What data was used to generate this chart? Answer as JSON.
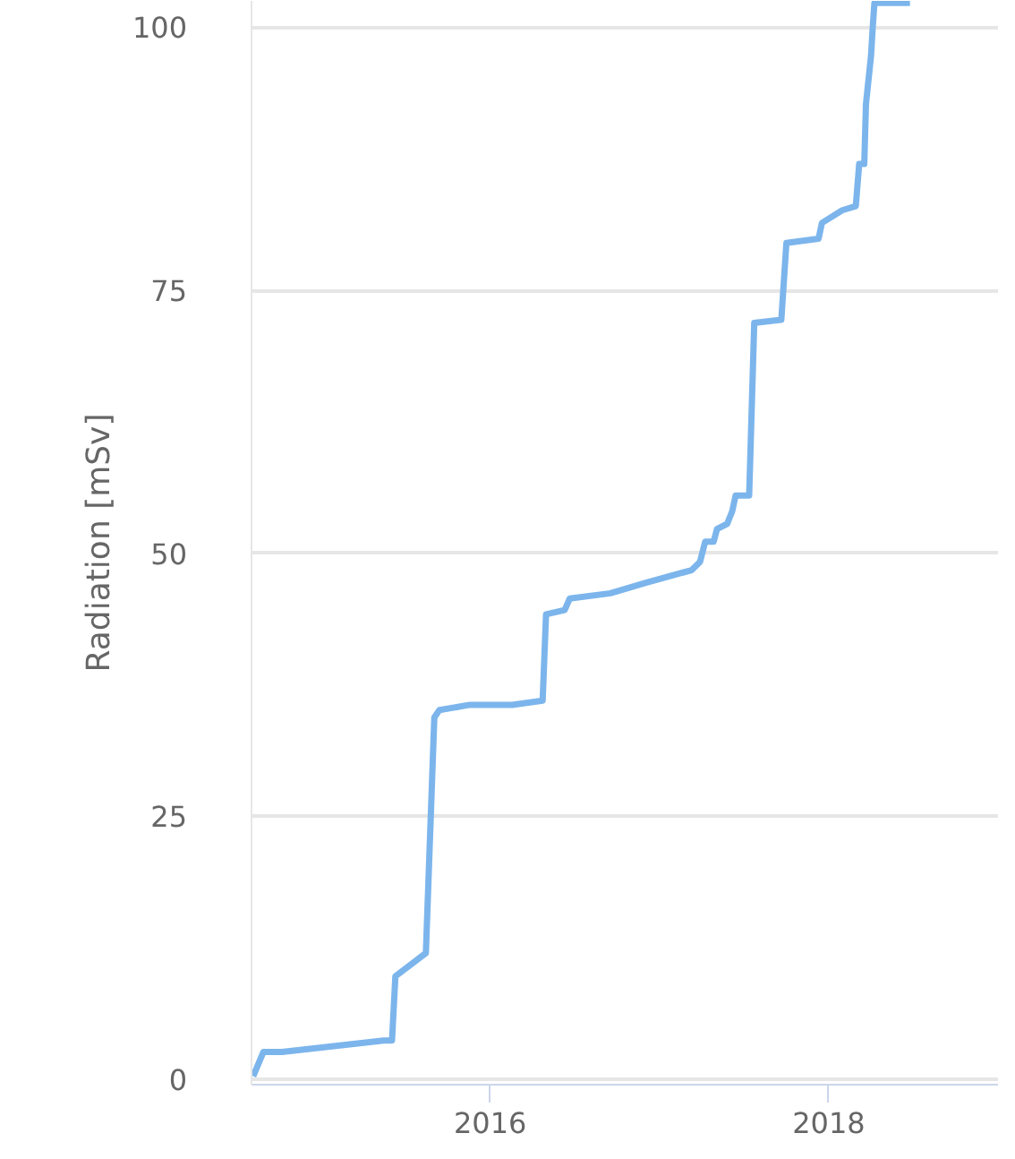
{
  "chart_data": {
    "type": "line",
    "ylabel": "Radiation [mSv]",
    "x": [
      2014.6,
      2014.66,
      2014.77,
      2015.37,
      2015.42,
      2015.44,
      2015.62,
      2015.67,
      2015.7,
      2015.88,
      2016.13,
      2016.31,
      2016.33,
      2016.44,
      2016.47,
      2016.71,
      2016.92,
      2017.19,
      2017.24,
      2017.27,
      2017.32,
      2017.34,
      2017.4,
      2017.43,
      2017.45,
      2017.53,
      2017.56,
      2017.72,
      2017.75,
      2017.94,
      2017.96,
      2018.08,
      2018.16,
      2018.18,
      2018.21,
      2018.22,
      2018.25,
      2018.26,
      2018.27,
      2018.48
    ],
    "series": [
      {
        "color": "#7cb5ec",
        "values": [
          0.3,
          2.6,
          2.6,
          3.7,
          3.7,
          9.8,
          12.0,
          34.4,
          35.1,
          35.6,
          35.6,
          36.0,
          44.2,
          44.6,
          45.7,
          46.2,
          47.2,
          48.4,
          49.2,
          51.1,
          51.1,
          52.3,
          52.8,
          54.0,
          55.5,
          55.5,
          71.9,
          72.2,
          79.5,
          79.9,
          81.4,
          82.6,
          83.0,
          87.0,
          87.0,
          92.7,
          97.3,
          100.0,
          102.3,
          102.3
        ]
      }
    ],
    "xlim": [
      2014.59,
      2019.0
    ],
    "ylim": [
      -0.5,
      102.5
    ],
    "xticks": [
      2016,
      2018
    ],
    "yticks": [
      0,
      25,
      50,
      75,
      100
    ],
    "grid": "y",
    "marker": "none",
    "line_style": "solid"
  }
}
